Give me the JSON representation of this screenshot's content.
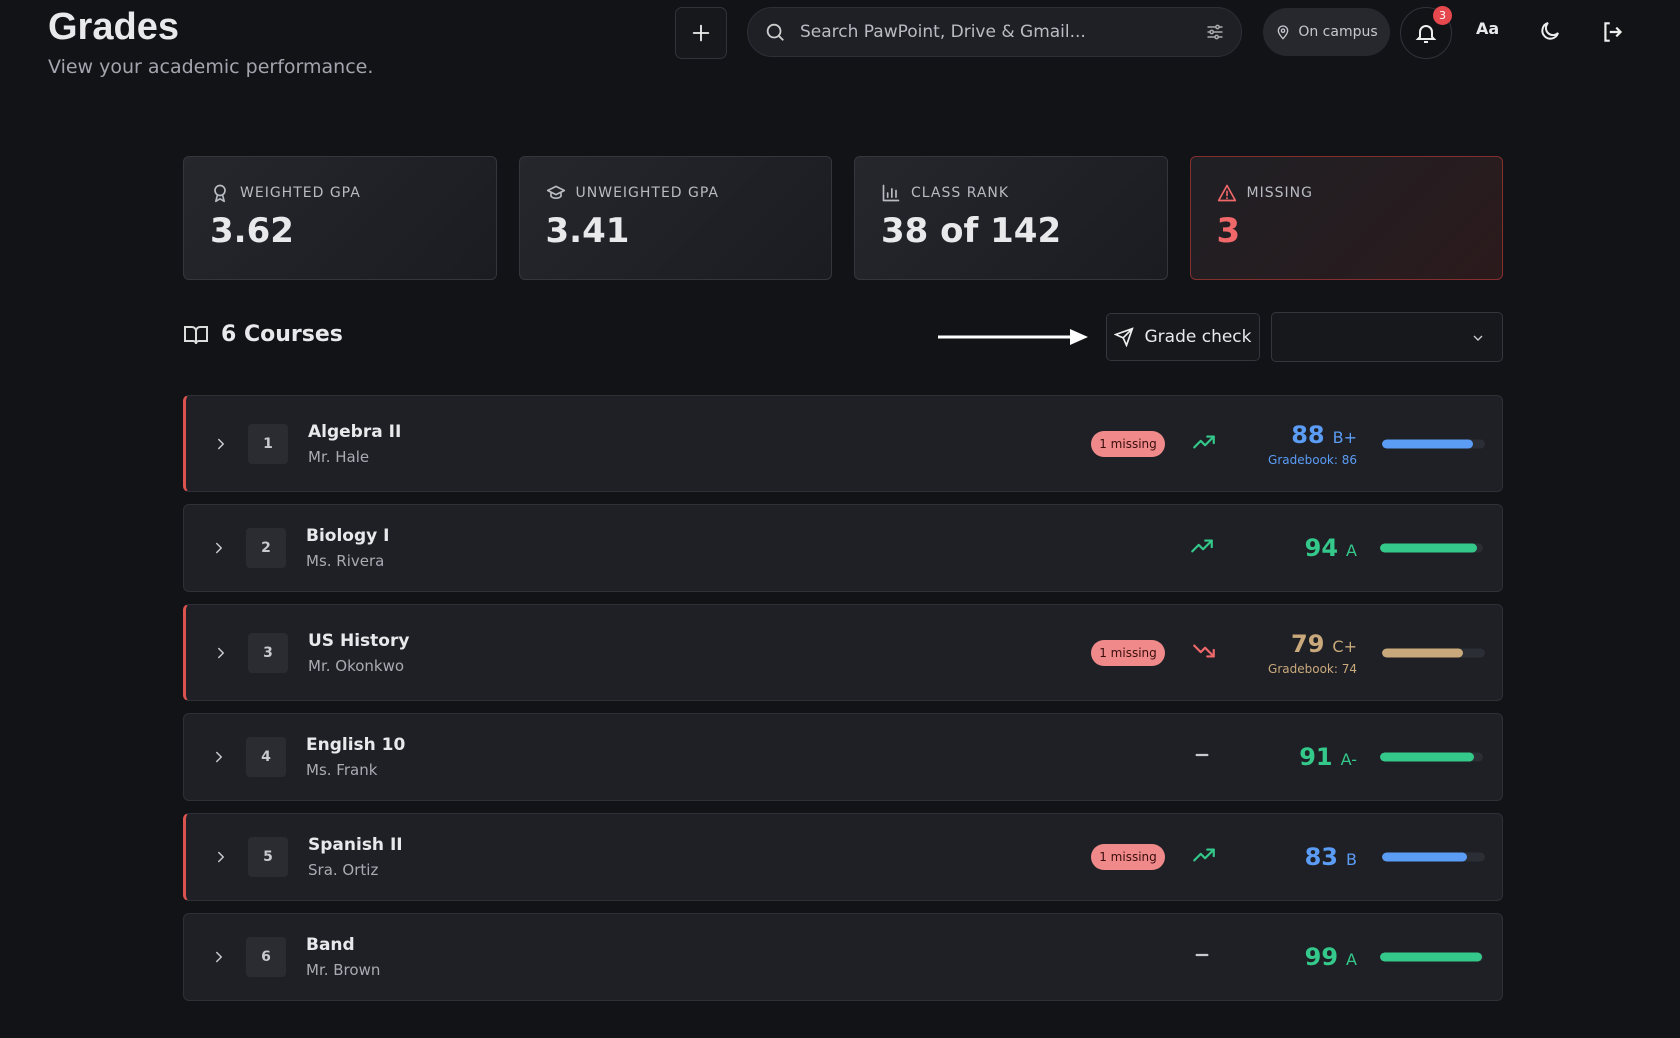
{
  "header": {
    "title": "Grades",
    "subtitle": "View your academic performance.",
    "search_placeholder": "Search PawPoint, Drive & Gmail...",
    "location": "On campus",
    "notification_count": 3,
    "font_button": "Aa"
  },
  "stats": [
    {
      "label": "WEIGHTED GPA",
      "value": 3.62,
      "icon": "award"
    },
    {
      "label": "UNWEIGHTED GPA",
      "value": 3.41,
      "icon": "cap"
    },
    {
      "label": "CLASS RANK",
      "value": "38 of 142",
      "icon": "chart"
    },
    {
      "label": "MISSING",
      "value": 3,
      "icon": "alert",
      "alert": true
    }
  ],
  "courses_heading": "6 Courses",
  "grade_check": "Grade check",
  "courses": [
    {
      "number": 1,
      "name": "Algebra II",
      "teacher": "Mr. Hale",
      "missing": "1 missing",
      "trend": "up",
      "grade": 88,
      "letter": "B+",
      "gradebook": "Gradebook: 86",
      "color": "#5b9cf5"
    },
    {
      "number": 2,
      "name": "Biology I",
      "teacher": "Ms. Rivera",
      "trend": "up",
      "grade": 94,
      "letter": "A",
      "color": "#34c88a"
    },
    {
      "number": 3,
      "name": "US History",
      "teacher": "Mr. Okonkwo",
      "missing": "1 missing",
      "trend": "down",
      "grade": 79,
      "letter": "C+",
      "gradebook": "Gradebook: 74",
      "color": "#c9a97b"
    },
    {
      "number": 4,
      "name": "English 10",
      "teacher": "Ms. Frank",
      "trend": "flat",
      "grade": 91,
      "letter": "A-",
      "color": "#34c88a"
    },
    {
      "number": 5,
      "name": "Spanish II",
      "teacher": "Sra. Ortiz",
      "missing": "1 missing",
      "trend": "up",
      "grade": 83,
      "letter": "B",
      "color": "#5b9cf5"
    },
    {
      "number": 6,
      "name": "Band",
      "teacher": "Mr. Brown",
      "trend": "flat",
      "grade": 99,
      "letter": "A",
      "color": "#34c88a"
    }
  ]
}
